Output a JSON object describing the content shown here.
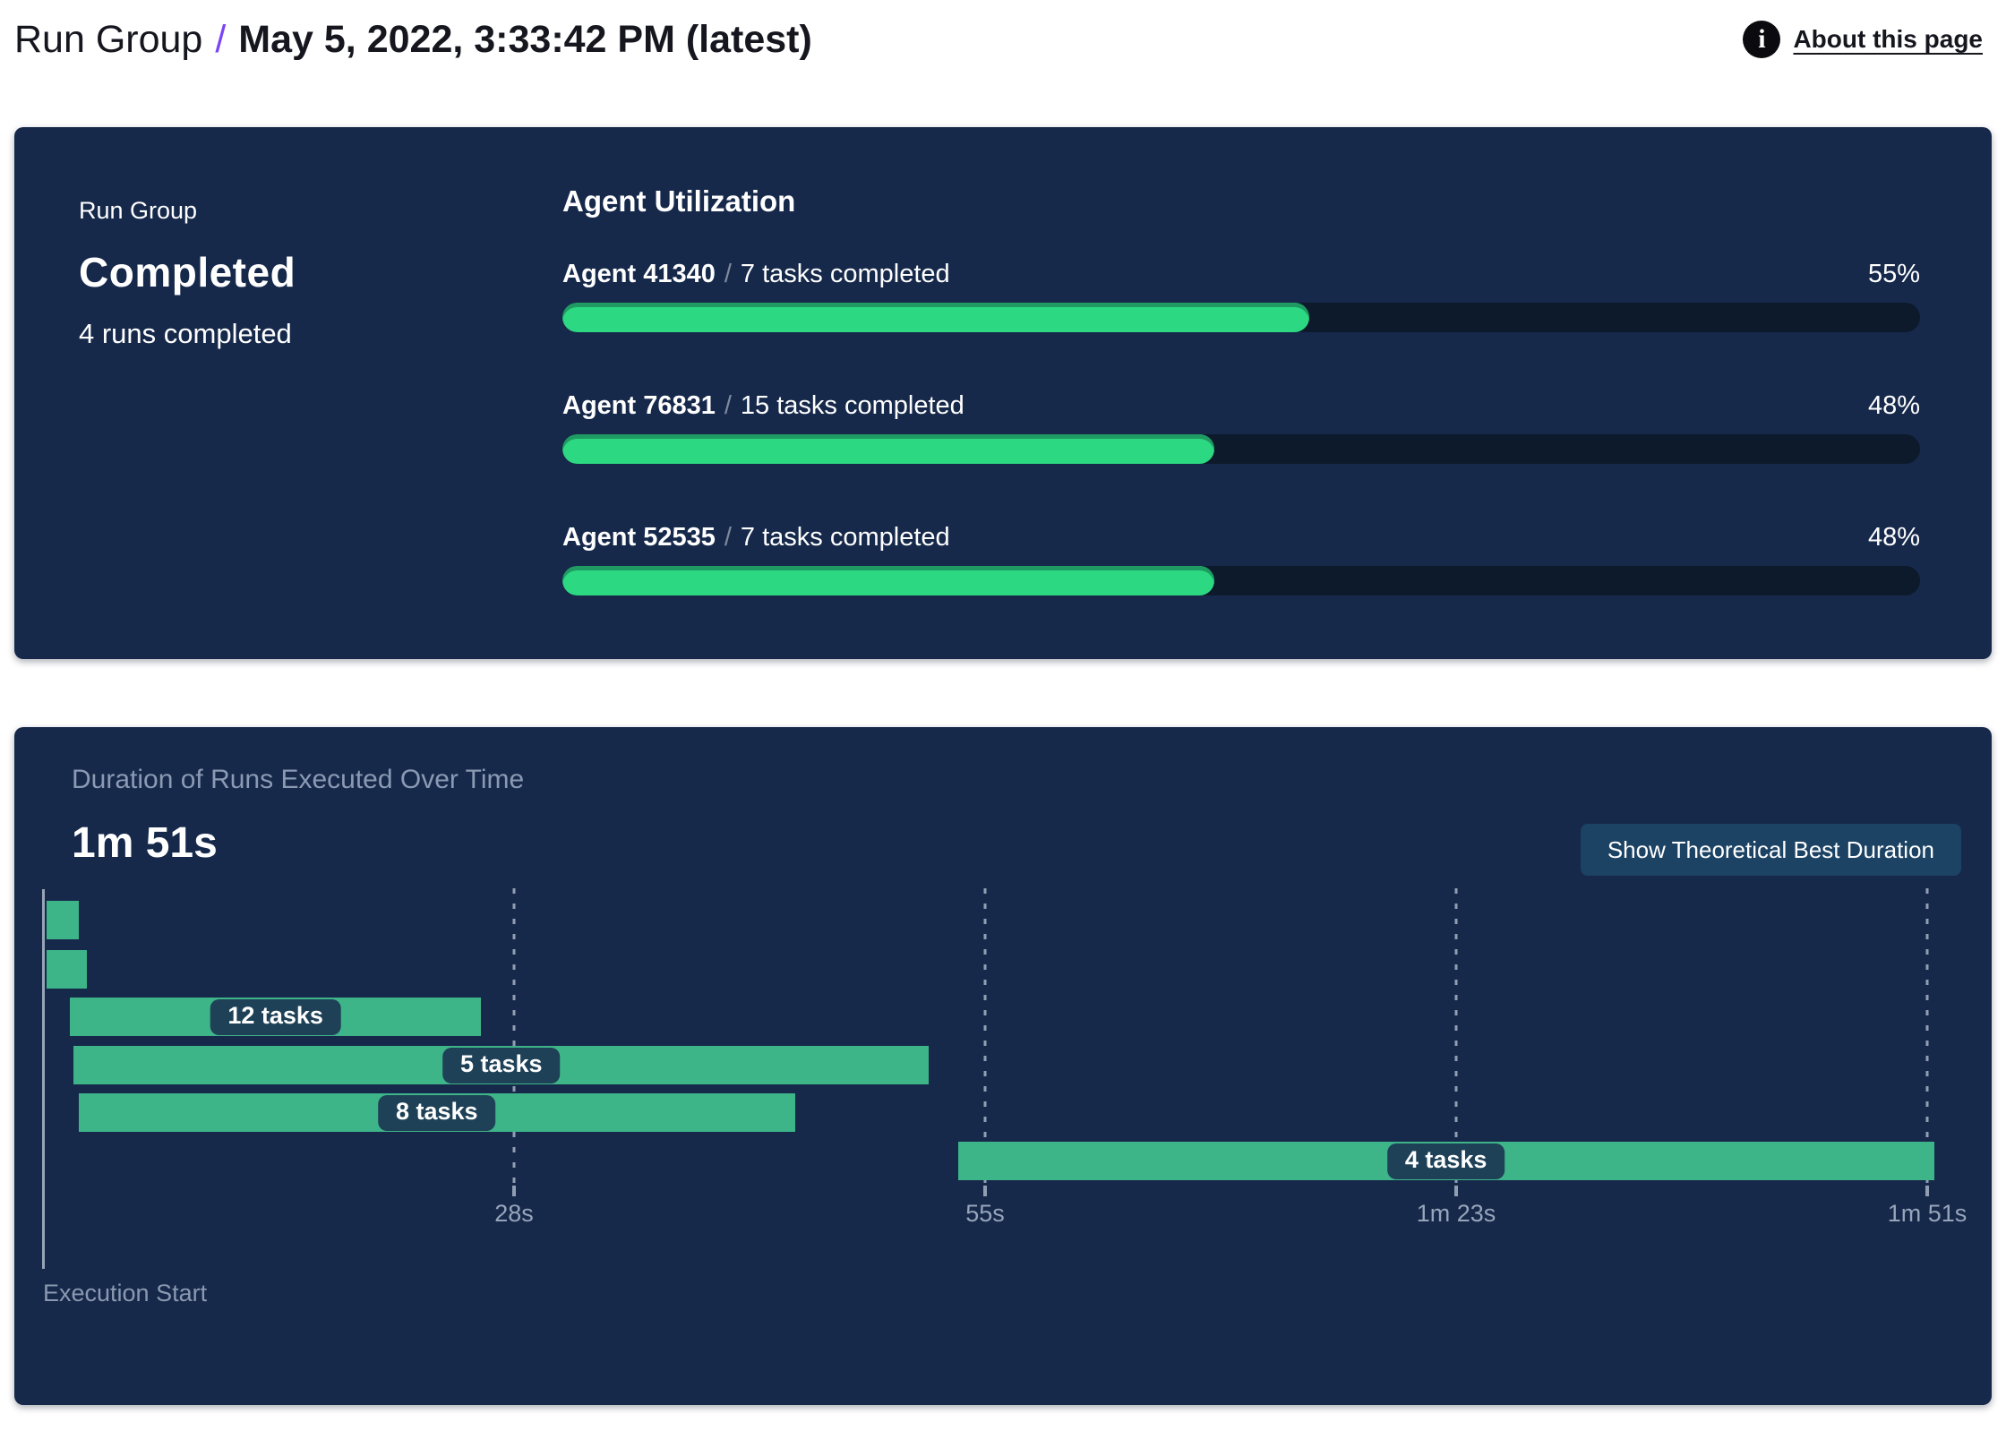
{
  "header": {
    "breadcrumb_root": "Run Group",
    "breadcrumb_separator": "/",
    "title": "May 5, 2022, 3:33:42 PM (latest)",
    "about_link": "About this page",
    "info_icon_glyph": "i"
  },
  "status_panel": {
    "eyebrow": "Run Group",
    "status": "Completed",
    "subtitle": "4 runs completed"
  },
  "agent_utilization": {
    "title": "Agent Utilization"
  },
  "duration_panel": {
    "title": "Duration of Runs Executed Over Time",
    "total_duration": "1m 51s",
    "button_label": "Show Theoretical Best Duration",
    "axis_label": "Execution Start"
  },
  "colors": {
    "panel_bg": "#16294b",
    "track": "#0d1a2b",
    "green": "#2dd882",
    "green_edge": "#1f9a62",
    "gantt_green": "#3eb489",
    "pill": "#1e4157",
    "purple": "#7a45f5",
    "button_bg": "#1c4264",
    "muted": "#8b9ab3"
  },
  "chart_data": [
    {
      "type": "bar",
      "subtype": "horizontal-progress",
      "title": "Agent Utilization",
      "categories": [
        "Agent 41340",
        "Agent 76831",
        "Agent 52535"
      ],
      "series": [
        {
          "name": "Utilization %",
          "values": [
            55,
            48,
            48
          ]
        }
      ],
      "annotations": [
        "7 tasks completed",
        "15 tasks completed",
        "7 tasks completed"
      ],
      "value_labels": [
        "55%",
        "48%",
        "48%"
      ],
      "separator": "/",
      "xlim": [
        0,
        100
      ],
      "legend_position": "none",
      "grid": "off"
    },
    {
      "type": "bar",
      "subtype": "gantt",
      "title": "Duration of Runs Executed Over Time",
      "total_duration_label": "1m 51s",
      "x_axis": {
        "min_seconds": 0,
        "max_seconds": 111,
        "origin_label": "Execution Start",
        "ticks": [
          {
            "label": "28s",
            "seconds": 27.75
          },
          {
            "label": "55s",
            "seconds": 55.5
          },
          {
            "label": "1m 23s",
            "seconds": 83.25
          },
          {
            "label": "1m 51s",
            "seconds": 111
          }
        ]
      },
      "bars": [
        {
          "start_s": 0.2,
          "end_s": 2.1,
          "label": ""
        },
        {
          "start_s": 0.2,
          "end_s": 2.6,
          "label": ""
        },
        {
          "start_s": 1.6,
          "end_s": 25.8,
          "label": "12 tasks"
        },
        {
          "start_s": 1.8,
          "end_s": 52.2,
          "label": "5 tasks"
        },
        {
          "start_s": 2.1,
          "end_s": 44.3,
          "label": "8 tasks"
        },
        {
          "start_s": 53.9,
          "end_s": 111.4,
          "label": "4 tasks"
        }
      ],
      "grid": "dashed-vertical",
      "legend_position": "none"
    }
  ]
}
